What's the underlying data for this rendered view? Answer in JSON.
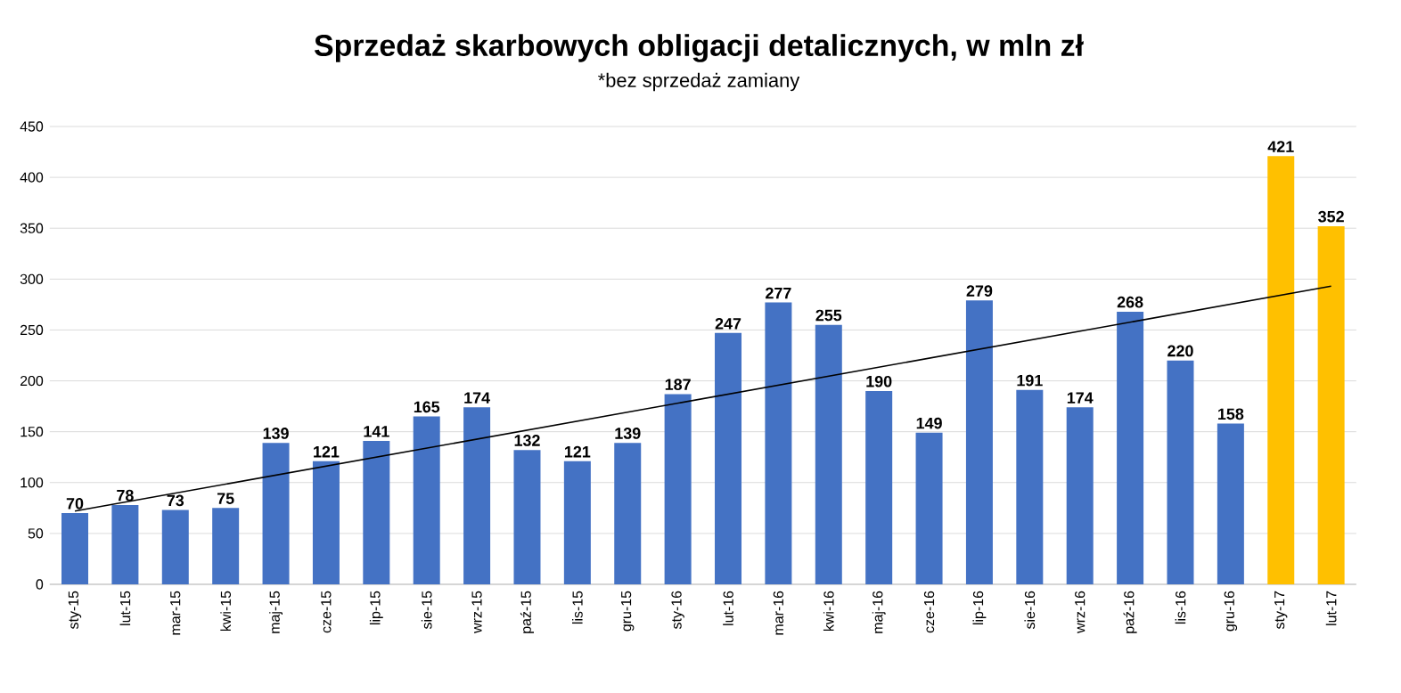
{
  "chart_data": {
    "type": "bar",
    "title": "Sprzedaż skarbowych obligacji detalicznych, w mln zł",
    "subtitle": "*bez sprzedaż zamiany",
    "categories": [
      "sty-15",
      "lut-15",
      "mar-15",
      "kwi-15",
      "maj-15",
      "cze-15",
      "lip-15",
      "sie-15",
      "wrz-15",
      "paź-15",
      "lis-15",
      "gru-15",
      "sty-16",
      "lut-16",
      "mar-16",
      "kwi-16",
      "maj-16",
      "cze-16",
      "lip-16",
      "sie-16",
      "wrz-16",
      "paź-16",
      "lis-16",
      "gru-16",
      "sty-17",
      "lut-17"
    ],
    "series": [
      {
        "values": [
          70,
          78,
          73,
          75,
          139,
          121,
          141,
          165,
          174,
          132,
          121,
          139,
          187,
          247,
          277,
          255,
          190,
          149,
          279,
          191,
          174,
          268,
          220,
          158,
          421,
          352
        ],
        "value_labels": [
          "70",
          "78",
          "73",
          "75",
          "139",
          "121",
          "141",
          "165",
          "174",
          "132",
          "121",
          "139",
          "187",
          "247",
          "277",
          "255",
          "190",
          "149",
          "279",
          "191",
          "174",
          "268",
          "220",
          "158",
          "421",
          "352"
        ],
        "colors": [
          "#4472c4",
          "#4472c4",
          "#4472c4",
          "#4472c4",
          "#4472c4",
          "#4472c4",
          "#4472c4",
          "#4472c4",
          "#4472c4",
          "#4472c4",
          "#4472c4",
          "#4472c4",
          "#4472c4",
          "#4472c4",
          "#4472c4",
          "#4472c4",
          "#4472c4",
          "#4472c4",
          "#4472c4",
          "#4472c4",
          "#4472c4",
          "#4472c4",
          "#4472c4",
          "#4472c4",
          "#ffc000",
          "#ffc000"
        ]
      },
      {
        "type": "line",
        "color": "#000000",
        "values": [
          72,
          null,
          null,
          null,
          null,
          null,
          null,
          null,
          null,
          null,
          null,
          null,
          null,
          null,
          null,
          null,
          null,
          null,
          null,
          null,
          null,
          null,
          null,
          null,
          null,
          293
        ]
      }
    ],
    "ylim": [
      0,
      450
    ],
    "yticks": [
      0,
      50,
      100,
      150,
      200,
      250,
      300,
      350,
      400,
      450
    ],
    "grid": "y"
  }
}
